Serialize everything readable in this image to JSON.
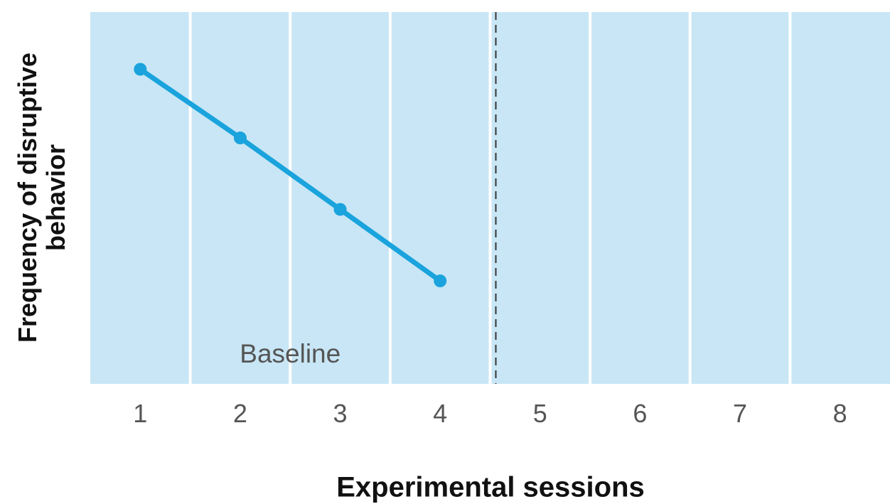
{
  "chart_data": {
    "type": "line",
    "x": [
      1,
      2,
      3,
      4
    ],
    "series": [
      {
        "values": [
          10.0,
          7.6,
          5.1,
          2.6
        ]
      }
    ],
    "categories": [
      "1",
      "2",
      "3",
      "4",
      "5",
      "6",
      "7",
      "8"
    ],
    "xlabel": "Experimental sessions",
    "ylabel": "Frequency of disruptive behavior",
    "annotations": [
      {
        "text": "Baseline"
      }
    ],
    "phase_change_between_sessions": [
      4,
      5
    ],
    "xlim": [
      0.5,
      8.5
    ],
    "ylim": [
      -1.0,
      12.0
    ],
    "grid": false,
    "colors": {
      "column_fill": "#c8e6f5",
      "line": "#1aa3dc",
      "divider": "#ffffff",
      "phase_line": "#333333",
      "text": "#111111",
      "tick_text": "#555555"
    }
  }
}
